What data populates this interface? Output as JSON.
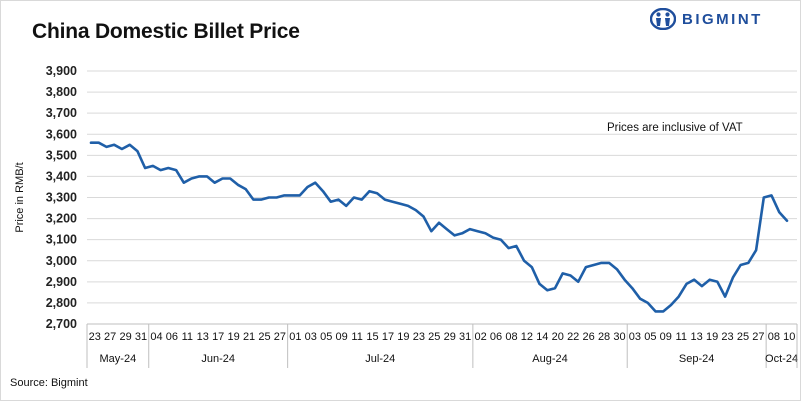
{
  "header": {
    "title": "China Domestic Billet Price",
    "logo_text": "BIGMINT"
  },
  "footer": {
    "source": "Source: Bigmint"
  },
  "colors": {
    "line": "#1f5fa8",
    "brand": "#1f4e9c",
    "grid": "#d9d9d9"
  },
  "chart_data": {
    "type": "line",
    "title": "China Domestic Billet Price",
    "xlabel": "",
    "ylabel": "Price in RMB/t",
    "ylim": [
      2700,
      3900
    ],
    "yticks": [
      2700,
      2800,
      2900,
      3000,
      3100,
      3200,
      3300,
      3400,
      3500,
      3600,
      3700,
      3800,
      3900
    ],
    "ytick_labels": [
      "2,700",
      "2,800",
      "2,900",
      "3,000",
      "3,100",
      "3,200",
      "3,300",
      "3,400",
      "3,500",
      "3,600",
      "3,700",
      "3,800",
      "3,900"
    ],
    "annotation": "Prices are inclusive of VAT",
    "grid": "horizontal",
    "x_tick_labels": [
      "23",
      "27",
      "29",
      "31",
      "04",
      "06",
      "11",
      "13",
      "17",
      "19",
      "21",
      "25",
      "27",
      "01",
      "03",
      "05",
      "09",
      "11",
      "15",
      "17",
      "19",
      "23",
      "25",
      "29",
      "31",
      "02",
      "06",
      "08",
      "12",
      "14",
      "20",
      "22",
      "26",
      "28",
      "30",
      "03",
      "05",
      "09",
      "11",
      "13",
      "19",
      "23",
      "25",
      "27",
      "08",
      "10"
    ],
    "month_groups": [
      {
        "label": "May-24",
        "ticks": 4
      },
      {
        "label": "Jun-24",
        "ticks": 9
      },
      {
        "label": "Jul-24",
        "ticks": 12
      },
      {
        "label": "Aug-24",
        "ticks": 10
      },
      {
        "label": "Sep-24",
        "ticks": 9
      },
      {
        "label": "Oct-24",
        "ticks": 2
      }
    ],
    "series": [
      {
        "values": [
          3560,
          3560,
          3540,
          3550,
          3530,
          3550,
          3520,
          3440,
          3450,
          3430,
          3440,
          3430,
          3370,
          3390,
          3400,
          3400,
          3370,
          3390,
          3390,
          3360,
          3340,
          3290,
          3290,
          3300,
          3300,
          3310,
          3310,
          3310,
          3350,
          3370,
          3330,
          3280,
          3290,
          3260,
          3300,
          3290,
          3330,
          3320,
          3290,
          3280,
          3270,
          3260,
          3240,
          3210,
          3140,
          3180,
          3150,
          3120,
          3130,
          3150,
          3140,
          3130,
          3110,
          3100,
          3060,
          3070,
          3000,
          2970,
          2890,
          2860,
          2870,
          2940,
          2930,
          2900,
          2970,
          2980,
          2990,
          2990,
          2960,
          2910,
          2870,
          2820,
          2800,
          2760,
          2760,
          2790,
          2830,
          2890,
          2910,
          2880,
          2910,
          2900,
          2830,
          2920,
          2980,
          2990,
          3050,
          3300,
          3310,
          3230,
          3190
        ]
      }
    ]
  }
}
